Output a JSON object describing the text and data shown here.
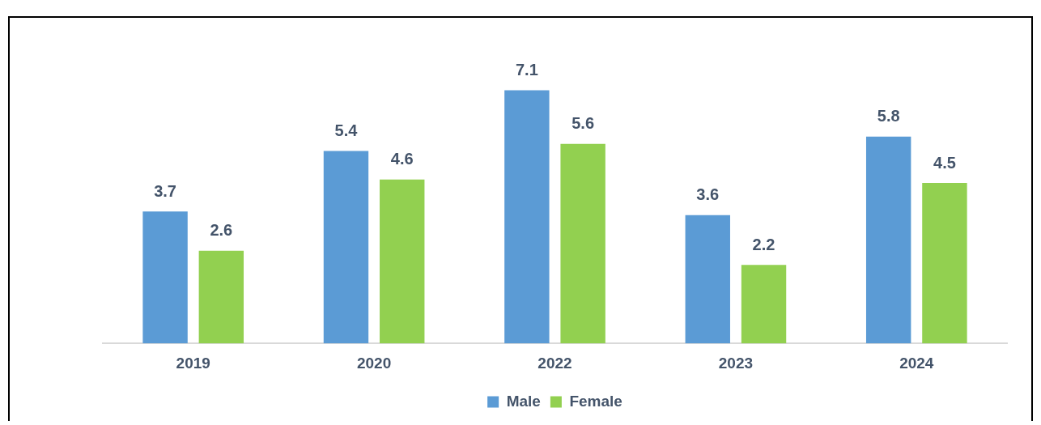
{
  "chart_data": {
    "type": "bar",
    "categories": [
      "2019",
      "2020",
      "2022",
      "2023",
      "2024"
    ],
    "series": [
      {
        "name": "Male",
        "color": "#5b9bd5",
        "values": [
          3.7,
          5.4,
          7.1,
          3.6,
          5.8
        ]
      },
      {
        "name": "Female",
        "color": "#92d050",
        "values": [
          2.6,
          4.6,
          5.6,
          2.2,
          4.5
        ]
      }
    ],
    "data_labels": true,
    "legend": "bottom",
    "grid": false
  }
}
